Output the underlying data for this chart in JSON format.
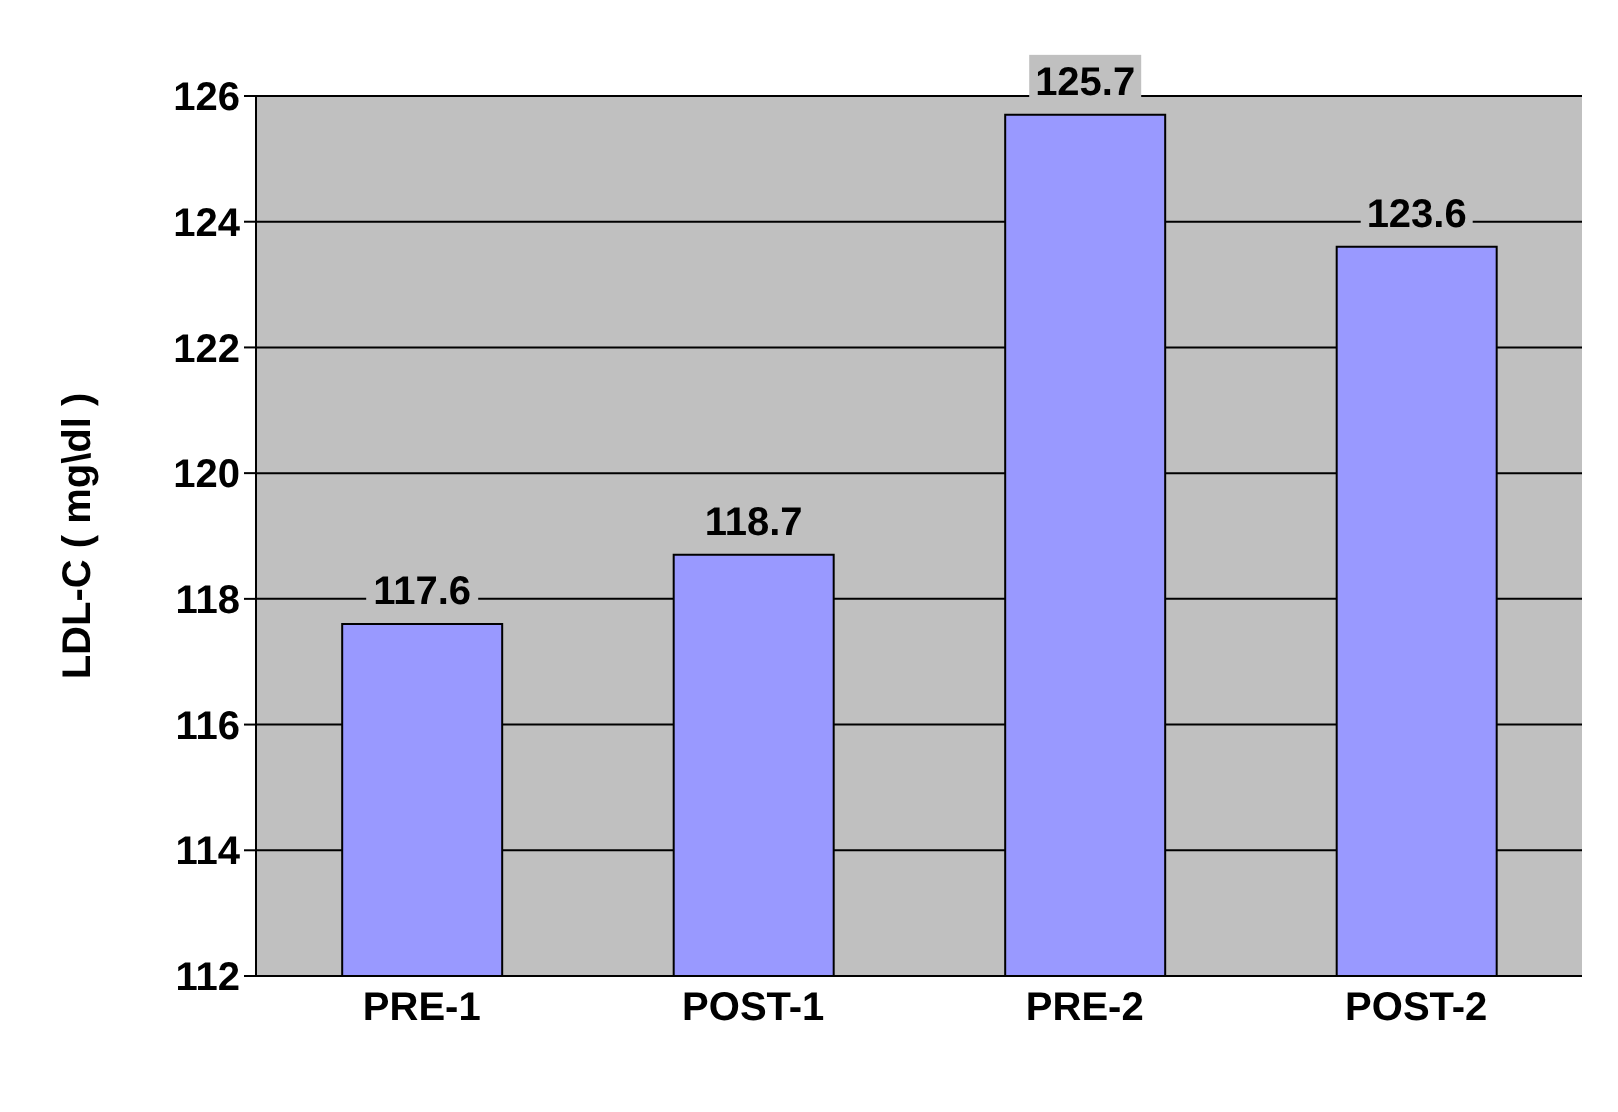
{
  "chart_data": {
    "type": "bar",
    "ylabel": "LDL-C ( mg\\dl )",
    "categories": [
      "PRE-1",
      "POST-1",
      "PRE-2",
      "POST-2"
    ],
    "values": [
      117.6,
      118.7,
      125.7,
      123.6
    ],
    "color": "#9999ff",
    "ylim": [
      112,
      126
    ],
    "yticks": [
      112,
      114,
      116,
      118,
      120,
      122,
      124,
      126
    ],
    "grid": "y",
    "data_labels": true
  }
}
